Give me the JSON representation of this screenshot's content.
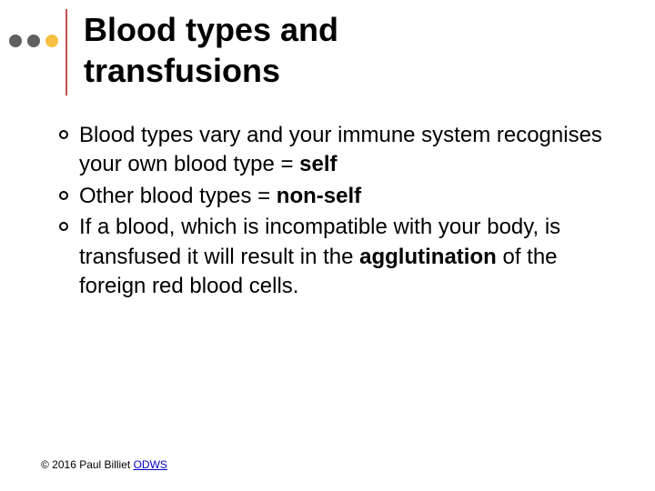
{
  "header": {
    "title_line1": "Blood types and",
    "title_line2": "transfusions",
    "title_fontsize": 36,
    "title_color": "#000000",
    "dots": [
      {
        "color": "#606060"
      },
      {
        "color": "#606060"
      },
      {
        "color": "#f6c143"
      }
    ],
    "divider_color": "#c0504d"
  },
  "bullets": [
    {
      "segments": [
        {
          "text": "Blood types vary and your immune system recognises your own blood type = ",
          "bold": false
        },
        {
          "text": "self",
          "bold": true
        }
      ]
    },
    {
      "segments": [
        {
          "text": "Other blood types = ",
          "bold": false
        },
        {
          "text": "non-self",
          "bold": true
        }
      ]
    },
    {
      "segments": [
        {
          "text": "If a blood, which is incompatible with your body, is transfused it will result in the ",
          "bold": false
        },
        {
          "text": "agglutination",
          "bold": true
        },
        {
          "text": " of the foreign red blood cells.",
          "bold": false
        }
      ]
    }
  ],
  "bullet_style": {
    "fontsize": 24,
    "text_color": "#000000",
    "marker_border_color": "#000000"
  },
  "footer": {
    "prefix": "© 2016 Paul Billiet ",
    "link_text": "ODWS",
    "link_color": "#0000cc",
    "fontsize": 12
  },
  "background_color": "#ffffff"
}
